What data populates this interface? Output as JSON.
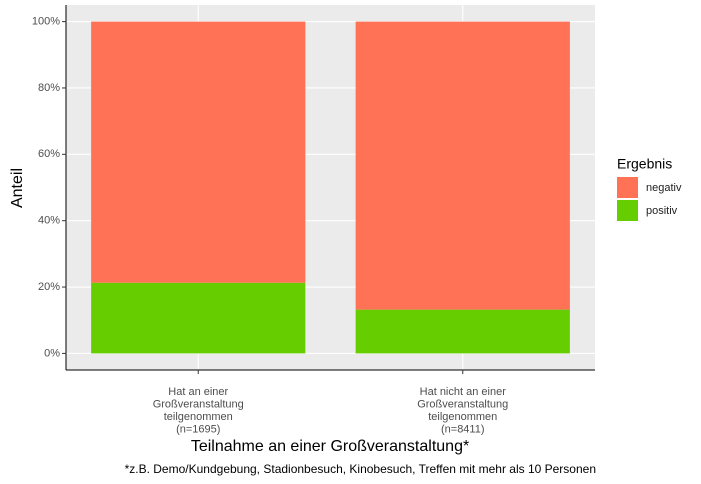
{
  "chart_data": {
    "type": "stacked_bar",
    "x_label": "Teilnahme an einer Großveranstaltung*",
    "y_label": "Anteil",
    "caption": "*z.B. Demo/Kundgebung, Stadionbesuch, Kinobesuch, Treffen mit mehr als 10 Personen",
    "categories": [
      "Hat an einer\nGroßveranstaltung\nteilgenommen\n(n=1695)",
      "Hat nicht an einer\nGroßveranstaltung\nteilgenommen\n(n=8411)"
    ],
    "legend_title": "Ergebnis",
    "legend_position": "right",
    "series": [
      {
        "name": "negativ",
        "color": "#ff7256",
        "values": [
          78.7,
          86.8
        ]
      },
      {
        "name": "positiv",
        "color": "#66cd00",
        "values": [
          21.3,
          13.2
        ]
      }
    ],
    "ylim": [
      -5,
      105
    ],
    "yticks": [
      {
        "value": 0,
        "label": "0%"
      },
      {
        "value": 20,
        "label": "20%"
      },
      {
        "value": 40,
        "label": "40%"
      },
      {
        "value": 60,
        "label": "60%"
      },
      {
        "value": 80,
        "label": "80%"
      },
      {
        "value": 100,
        "label": "100%"
      }
    ],
    "grid": true
  }
}
